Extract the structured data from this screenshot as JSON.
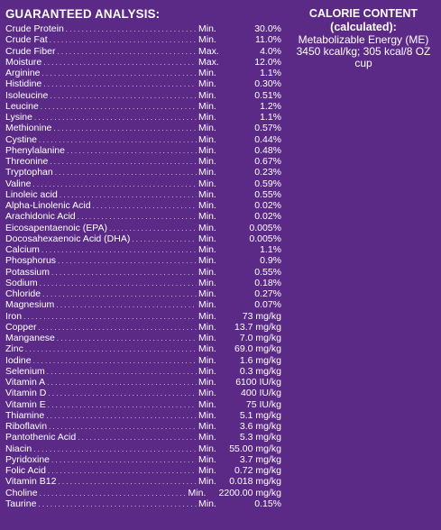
{
  "analysis": {
    "heading": "GUARANTEED ANALYSIS:",
    "rows": [
      {
        "name": "Crude Protein",
        "qualifier": "Min.",
        "value": "30.0%"
      },
      {
        "name": "Crude Fat",
        "qualifier": "Min.",
        "value": "11.0%"
      },
      {
        "name": "Crude Fiber",
        "qualifier": "Max.",
        "value": "4.0%"
      },
      {
        "name": "Moisture",
        "qualifier": "Max.",
        "value": "12.0%"
      },
      {
        "name": "Arginine",
        "qualifier": "Min.",
        "value": "1.1%"
      },
      {
        "name": "Histidine",
        "qualifier": "Min.",
        "value": "0.30%"
      },
      {
        "name": "Isoleucine",
        "qualifier": "Min.",
        "value": "0.51%"
      },
      {
        "name": "Leucine",
        "qualifier": "Min.",
        "value": "1.2%"
      },
      {
        "name": "Lysine",
        "qualifier": "Min.",
        "value": "1.1%"
      },
      {
        "name": "Methionine",
        "qualifier": "Min.",
        "value": "0.57%"
      },
      {
        "name": "Cystine",
        "qualifier": "Min.",
        "value": "0.44%"
      },
      {
        "name": "Phenylalanine",
        "qualifier": "Min.",
        "value": "0.48%"
      },
      {
        "name": "Threonine",
        "qualifier": "Min.",
        "value": "0.67%"
      },
      {
        "name": "Tryptophan",
        "qualifier": "Min.",
        "value": "0.23%"
      },
      {
        "name": "Valine",
        "qualifier": "Min.",
        "value": "0.59%"
      },
      {
        "name": "Linoleic acid",
        "qualifier": "Min.",
        "value": "0.55%"
      },
      {
        "name": "Alpha-Linolenic Acid",
        "qualifier": "Min.",
        "value": "0.02%"
      },
      {
        "name": "Arachidonic Acid",
        "qualifier": "Min.",
        "value": "0.02%"
      },
      {
        "name": "Eicosapentaenoic (EPA)",
        "qualifier": "Min.",
        "value": "0.005%"
      },
      {
        "name": "Docosahexaenoic Acid (DHA)",
        "qualifier": "Min.",
        "value": "0.005%"
      },
      {
        "name": "Calcium",
        "qualifier": "Min.",
        "value": "1.1%"
      },
      {
        "name": "Phosphorus",
        "qualifier": "Min.",
        "value": "0.9%"
      },
      {
        "name": "Potassium",
        "qualifier": "Min.",
        "value": "0.55%"
      },
      {
        "name": "Sodium",
        "qualifier": "Min.",
        "value": "0.18%"
      },
      {
        "name": "Chloride",
        "qualifier": "Min.",
        "value": "0.27%"
      },
      {
        "name": "Magnesium",
        "qualifier": "Min.",
        "value": "0.07%"
      },
      {
        "name": "Iron",
        "qualifier": "Min.",
        "value": "73 mg/kg"
      },
      {
        "name": "Copper",
        "qualifier": "Min.",
        "value": "13.7 mg/kg"
      },
      {
        "name": "Manganese",
        "qualifier": "Min.",
        "value": "7.0 mg/kg"
      },
      {
        "name": "Zinc",
        "qualifier": "Min.",
        "value": "69.0 mg/kg"
      },
      {
        "name": "Iodine",
        "qualifier": "Min.",
        "value": "1.6 mg/kg"
      },
      {
        "name": "Selenium",
        "qualifier": "Min.",
        "value": "0.3 mg/kg"
      },
      {
        "name": "Vitamin A",
        "qualifier": "Min.",
        "value": "6100 IU/kg"
      },
      {
        "name": "Vitamin D",
        "qualifier": "Min.",
        "value": "400 IU/kg"
      },
      {
        "name": "Vitamin E",
        "qualifier": "Min.",
        "value": "75 IU/kg"
      },
      {
        "name": "Thiamine",
        "qualifier": "Min.",
        "value": "5.1 mg/kg"
      },
      {
        "name": "Riboflavin",
        "qualifier": "Min.",
        "value": "3.6 mg/kg"
      },
      {
        "name": "Pantothenic Acid",
        "qualifier": "Min.",
        "value": "5.3 mg/kg"
      },
      {
        "name": "Niacin",
        "qualifier": "Min.",
        "value": "55.00 mg/kg"
      },
      {
        "name": "Pyridoxine",
        "qualifier": "Min.",
        "value": "3.7 mg/kg"
      },
      {
        "name": "Folic Acid",
        "qualifier": "Min.",
        "value": "0.72 mg/kg"
      },
      {
        "name": "Vitamin B12",
        "qualifier": "Min.",
        "value": "0.018 mg/kg"
      },
      {
        "name": "Choline",
        "qualifier": "Min.",
        "value": "2200.00 mg/kg"
      },
      {
        "name": "Taurine",
        "qualifier": "Min.",
        "value": "0.15%"
      }
    ]
  },
  "calorie": {
    "title": "CALORIE CONTENT (calculated):",
    "line1": "Metabolizable Energy (ME)",
    "line2": "3450 kcal/kg; 305 kcal/8 OZ cup"
  },
  "colors": {
    "background": "#5a2a86",
    "text": "#ffffff"
  }
}
